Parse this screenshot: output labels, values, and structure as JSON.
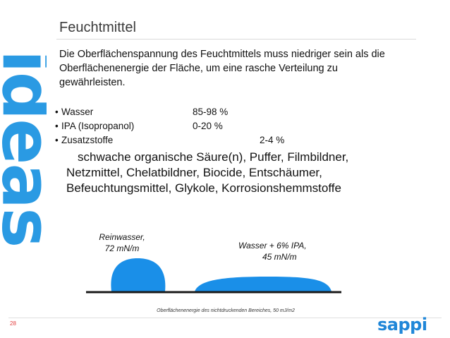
{
  "sidebar": {
    "logo_word": "ideas"
  },
  "slide": {
    "title": "Feuchtmittel",
    "intro_lines": [
      "Die Oberflächenspannung des Feuchtmittels muss niedriger sein als die",
      "Oberflächenenergie der Fläche, um eine rasche Verteilung zu",
      "gewährleisten."
    ],
    "bullet_marker": "•",
    "bullets": [
      {
        "name": "Wasser",
        "value": "85-98 %"
      },
      {
        "name": "IPA (Isopropanol)",
        "value": "0-20 %"
      },
      {
        "name": "Zusatzstoffe",
        "value": "2-4 %"
      }
    ],
    "additives_lines": [
      "schwache organische Säure(n), Puffer, Filmbildner,",
      "Netzmittel, Chelatbildner, Biocide, Entschäumer,",
      "Befeuchtungsmittel, Glykole, Korrosionshemmstoffe"
    ]
  },
  "diagram": {
    "left_label_line1": "Reinwasser,",
    "left_label_line2": "72 mN/m",
    "right_label_line1": "Wasser + 6% IPA,",
    "right_label_line2": "45 mN/m",
    "footnote": "Oberflächenenergie des nichtdruckenden Bereiches,  50 mJ/m2",
    "drop_color": "#1a8fe8",
    "surface_color": "#1a1a1a"
  },
  "footer": {
    "page_number": "28",
    "brand": "sappi",
    "brand_color": "#1f86d8"
  }
}
